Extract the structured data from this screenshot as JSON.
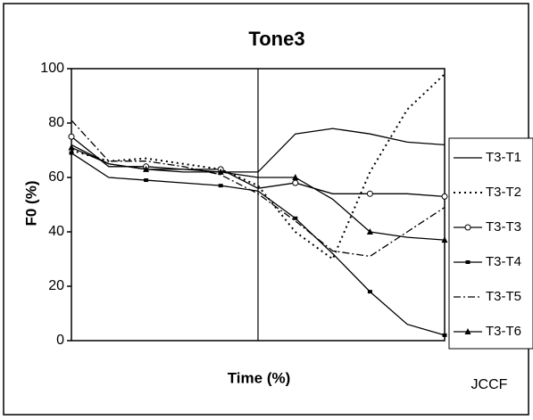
{
  "chart_data": {
    "type": "line",
    "title": "Tone3",
    "xlabel": "Time (%)",
    "ylabel": "F0 (%)",
    "annotation": "JCCF",
    "x": [
      0,
      10,
      20,
      30,
      40,
      50,
      60,
      70,
      80,
      90,
      100
    ],
    "xlim": [
      0,
      100
    ],
    "reference_x": 50,
    "ylim": [
      0,
      100
    ],
    "yticks": [
      0,
      20,
      40,
      60,
      80,
      100
    ],
    "legend": "right",
    "series": [
      {
        "name": "T3-T1",
        "color": "#000000",
        "style": "solid",
        "marker": "none",
        "values": [
          72,
          65,
          63,
          62,
          62,
          62,
          76,
          78,
          76,
          73,
          72
        ]
      },
      {
        "name": "T3-T2",
        "color": "#000000",
        "style": "dotted",
        "marker": "none",
        "values": [
          70,
          66,
          67,
          65,
          63,
          57,
          40,
          30,
          62,
          85,
          98
        ]
      },
      {
        "name": "T3-T3",
        "color": "#000000",
        "style": "solid",
        "marker": "circle",
        "values": [
          75,
          64,
          64,
          63,
          63,
          56,
          58,
          54,
          54,
          54,
          53
        ]
      },
      {
        "name": "T3-T4",
        "color": "#000000",
        "style": "solid",
        "marker": "square",
        "values": [
          69,
          60,
          59,
          58,
          57,
          55,
          45,
          32,
          18,
          6,
          2
        ]
      },
      {
        "name": "T3-T5",
        "color": "#000000",
        "style": "dashdot",
        "marker": "none",
        "values": [
          81,
          66,
          66,
          64,
          61,
          54,
          44,
          33,
          31,
          40,
          49
        ]
      },
      {
        "name": "T3-T6",
        "color": "#000000",
        "style": "solid",
        "marker": "triangle",
        "values": [
          71,
          65,
          63,
          63,
          62,
          60,
          60,
          52,
          40,
          38,
          37
        ]
      }
    ]
  }
}
